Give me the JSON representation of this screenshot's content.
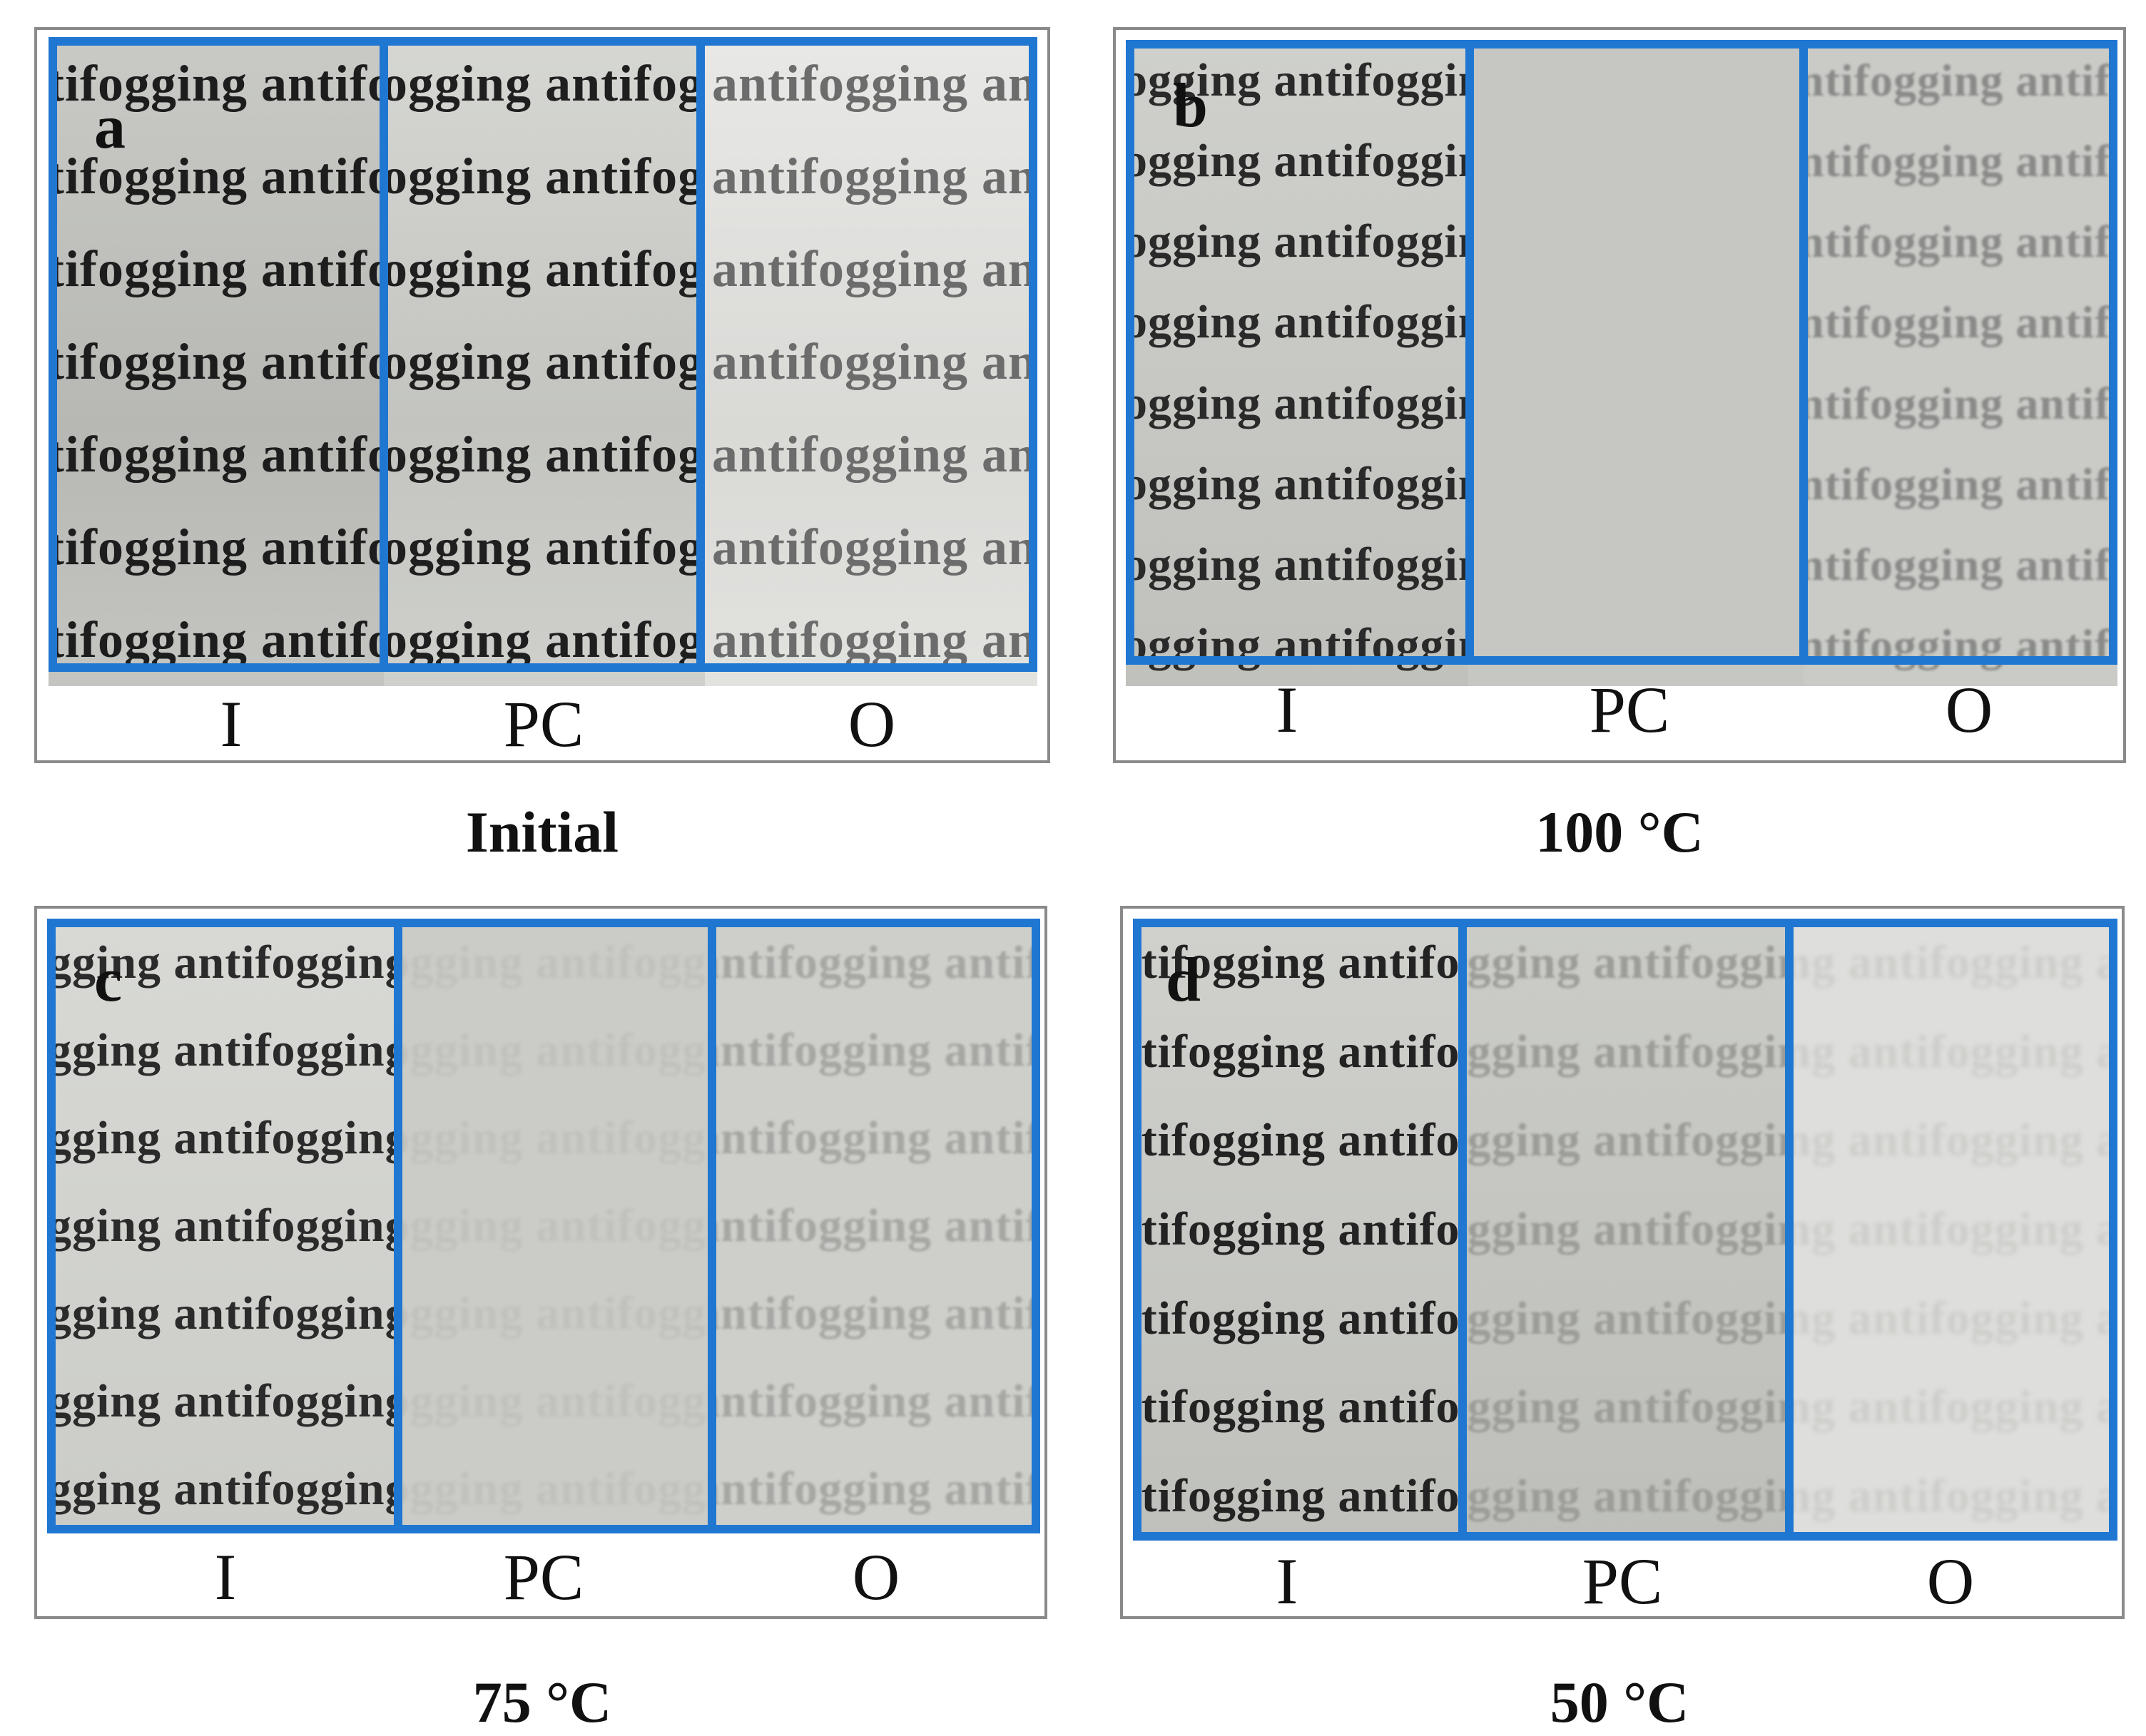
{
  "sample_text": "antifogging antifogging antifogging antifogging antifogging antifogging",
  "column_labels": [
    "I",
    "PC",
    "O"
  ],
  "panels": [
    {
      "letter": "a",
      "caption": "Initial"
    },
    {
      "letter": "b",
      "caption": "100 °C"
    },
    {
      "letter": "c",
      "caption": "75 °C"
    },
    {
      "letter": "d",
      "caption": "50 °C"
    }
  ],
  "colors": {
    "frame": "#1f77d2",
    "panel_border": "#8a8a8a",
    "fog": "#cfcfcd"
  }
}
